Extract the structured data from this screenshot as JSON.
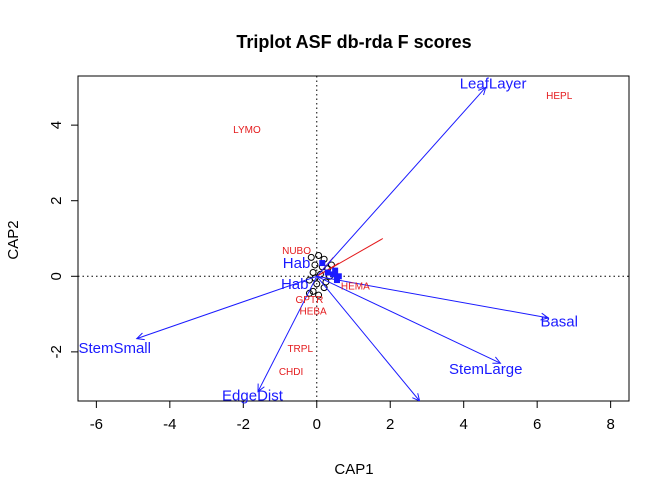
{
  "chart_data": {
    "type": "scatter",
    "title": "Triplot ASF db-rda F scores",
    "xlabel": "CAP1",
    "ylabel": "CAP2",
    "xlim": [
      -6.5,
      8.5
    ],
    "ylim": [
      -3.3,
      5.3
    ],
    "x_ticks": [
      -6,
      -4,
      -2,
      0,
      2,
      4,
      6,
      8
    ],
    "y_ticks": [
      -2,
      0,
      2,
      4
    ],
    "reference_lines": {
      "x": 0,
      "y": 0,
      "style": "dotted"
    },
    "colors": {
      "species": "#e41a1c",
      "environment": "#1a1aff",
      "sites": "#000000",
      "axis": "#000000"
    },
    "species_labels": [
      {
        "label": "LYMO",
        "x": -1.9,
        "y": 3.9
      },
      {
        "label": "HEPL",
        "x": 6.6,
        "y": 4.8
      },
      {
        "label": "NUBO",
        "x": -0.55,
        "y": 0.7
      },
      {
        "label": "HEMA",
        "x": 1.05,
        "y": -0.25
      },
      {
        "label": "GPTR",
        "x": -0.2,
        "y": -0.6
      },
      {
        "label": "HEBA",
        "x": -0.1,
        "y": -0.9
      },
      {
        "label": "TRPL",
        "x": -0.45,
        "y": -1.9
      },
      {
        "label": "CHDI",
        "x": -0.7,
        "y": -2.5
      }
    ],
    "species_segments": [
      {
        "x": 1.8,
        "y": 1.0
      },
      {
        "x": 0.6,
        "y": 0.35
      },
      {
        "x": 0.45,
        "y": 0.5
      }
    ],
    "environment_vectors": [
      {
        "label": "LeafLayer",
        "x": 4.6,
        "y": 5.0,
        "label_x": 4.8,
        "label_y": 5.1
      },
      {
        "label": "Basal",
        "x": 6.3,
        "y": -1.1,
        "label_x": 6.6,
        "label_y": -1.2
      },
      {
        "label": "StemLarge",
        "x": 5.0,
        "y": -2.3,
        "label_x": 4.6,
        "label_y": -2.45
      },
      {
        "label": "StemSmall",
        "x": -4.9,
        "y": -1.65,
        "label_x": -5.5,
        "label_y": -1.9
      },
      {
        "label": "EdgeDist",
        "x": -1.6,
        "y": -3.05,
        "label_x": -1.75,
        "label_y": -3.15
      },
      {
        "label": "",
        "x": 2.8,
        "y": -3.3,
        "label_x": 2.8,
        "label_y": -3.3
      }
    ],
    "factor_labels": [
      {
        "label": "Hab",
        "x": -0.55,
        "y": 0.35
      },
      {
        "label": "Hab",
        "x": -0.6,
        "y": -0.2
      }
    ],
    "site_points": [
      {
        "x": -0.15,
        "y": 0.5
      },
      {
        "x": 0.05,
        "y": 0.55
      },
      {
        "x": 0.2,
        "y": 0.45
      },
      {
        "x": -0.05,
        "y": 0.3
      },
      {
        "x": 0.15,
        "y": 0.25
      },
      {
        "x": 0.3,
        "y": 0.2
      },
      {
        "x": -0.1,
        "y": 0.1
      },
      {
        "x": 0.1,
        "y": 0.05
      },
      {
        "x": 0.35,
        "y": 0.0
      },
      {
        "x": -0.2,
        "y": -0.1
      },
      {
        "x": 0.0,
        "y": -0.2
      },
      {
        "x": 0.2,
        "y": -0.3
      },
      {
        "x": -0.1,
        "y": -0.4
      },
      {
        "x": 0.05,
        "y": -0.5
      },
      {
        "x": -0.2,
        "y": -0.45
      },
      {
        "x": 0.25,
        "y": -0.15
      },
      {
        "x": -0.05,
        "y": -0.05
      },
      {
        "x": 0.4,
        "y": 0.3
      }
    ],
    "env_centroids": [
      {
        "x": 0.45,
        "y": 0.05
      },
      {
        "x": 0.6,
        "y": 0.0
      },
      {
        "x": 0.5,
        "y": 0.15
      },
      {
        "x": 0.3,
        "y": 0.1
      },
      {
        "x": 0.55,
        "y": -0.1
      },
      {
        "x": 0.15,
        "y": 0.35
      }
    ]
  }
}
